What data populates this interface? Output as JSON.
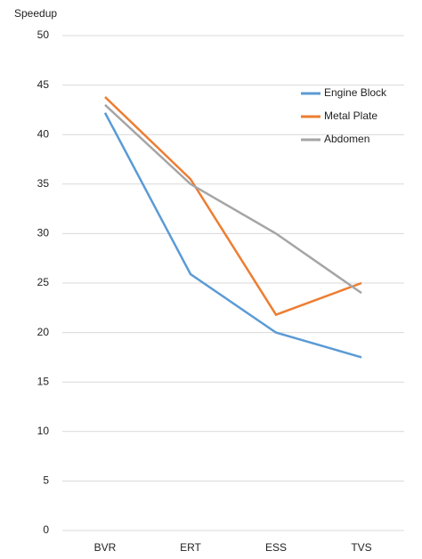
{
  "chart_data": {
    "type": "line",
    "y_label": "Speedup",
    "categories": [
      "BVR",
      "ERT",
      "ESS",
      "TVS"
    ],
    "series": [
      {
        "name": "Engine Block",
        "color": "#5b9bd5",
        "values": [
          42.2,
          25.9,
          20,
          17.5
        ]
      },
      {
        "name": "Metal Plate",
        "color": "#ed7d31",
        "values": [
          43.8,
          35.5,
          21.8,
          25
        ]
      },
      {
        "name": "Abdomen",
        "color": "#a5a5a5",
        "values": [
          43,
          35,
          30,
          24
        ]
      }
    ],
    "ylim": [
      0,
      50
    ],
    "yticks": [
      0,
      5,
      10,
      15,
      20,
      25,
      30,
      35,
      40,
      45,
      50
    ],
    "grid": true,
    "legend": "upper-right"
  }
}
